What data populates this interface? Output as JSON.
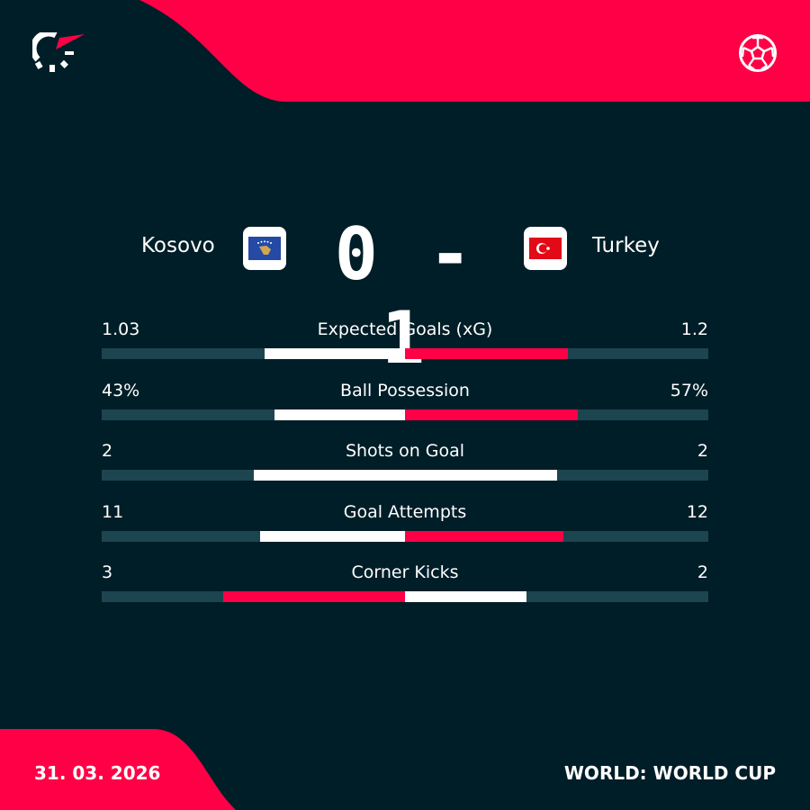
{
  "colors": {
    "accent": "#ff0046",
    "background": "#001e28",
    "track": "#1d4550",
    "bar_light": "#ffffff"
  },
  "icons": {
    "logo": "flashscore-logo",
    "sport": "football-icon"
  },
  "match": {
    "home": "Kosovo",
    "away": "Turkey",
    "home_score": "0",
    "away_score": "1",
    "separator": "-",
    "score_text": "0 - 1"
  },
  "stats": [
    {
      "label": "Expected Goals (xG)",
      "home": "1.03",
      "away": "1.2",
      "home_value": 1.03,
      "away_value": 1.2
    },
    {
      "label": "Ball Possession",
      "home": "43%",
      "away": "57%",
      "home_value": 43,
      "away_value": 57
    },
    {
      "label": "Shots on Goal",
      "home": "2",
      "away": "2",
      "home_value": 2,
      "away_value": 2
    },
    {
      "label": "Goal Attempts",
      "home": "11",
      "away": "12",
      "home_value": 11,
      "away_value": 12
    },
    {
      "label": "Corner Kicks",
      "home": "3",
      "away": "2",
      "home_value": 3,
      "away_value": 2
    }
  ],
  "footer": {
    "date": "31. 03. 2026",
    "competition": "WORLD: WORLD CUP"
  }
}
